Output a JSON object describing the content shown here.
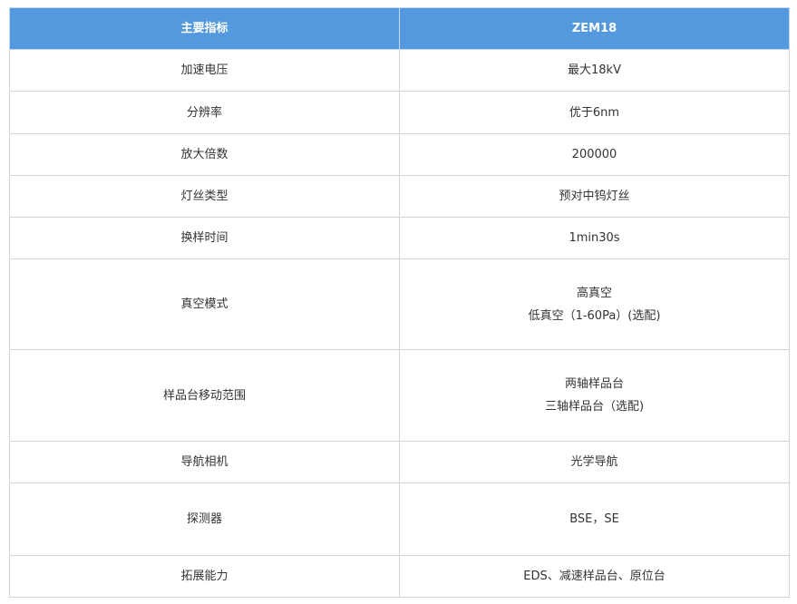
{
  "header": {
    "col1": "主要指标",
    "col2": "ZEM18"
  },
  "colors": {
    "header_bg": "#5499de",
    "header_text": "#ffffff",
    "border": "#d4d4d4"
  },
  "rows": [
    {
      "label": "加速电压",
      "values": [
        "最大18kV"
      ]
    },
    {
      "label": "分辨率",
      "values": [
        "优于6nm"
      ]
    },
    {
      "label": "放大倍数",
      "values": [
        "200000"
      ]
    },
    {
      "label": "灯丝类型",
      "values": [
        "预对中钨灯丝"
      ]
    },
    {
      "label": "换样时间",
      "values": [
        "1min30s"
      ]
    },
    {
      "label": "真空模式",
      "values": [
        "高真空",
        "低真空（1-60Pa）(选配)"
      ]
    },
    {
      "label": "样品台移动范围",
      "values": [
        "两轴样品台",
        "三轴样品台（选配)"
      ]
    },
    {
      "label": "导航相机",
      "values": [
        "光学导航"
      ]
    },
    {
      "label": "探测器",
      "values": [
        "BSE，SE"
      ]
    },
    {
      "label": "拓展能力",
      "values": [
        "EDS、减速样品台、原位台"
      ]
    }
  ]
}
